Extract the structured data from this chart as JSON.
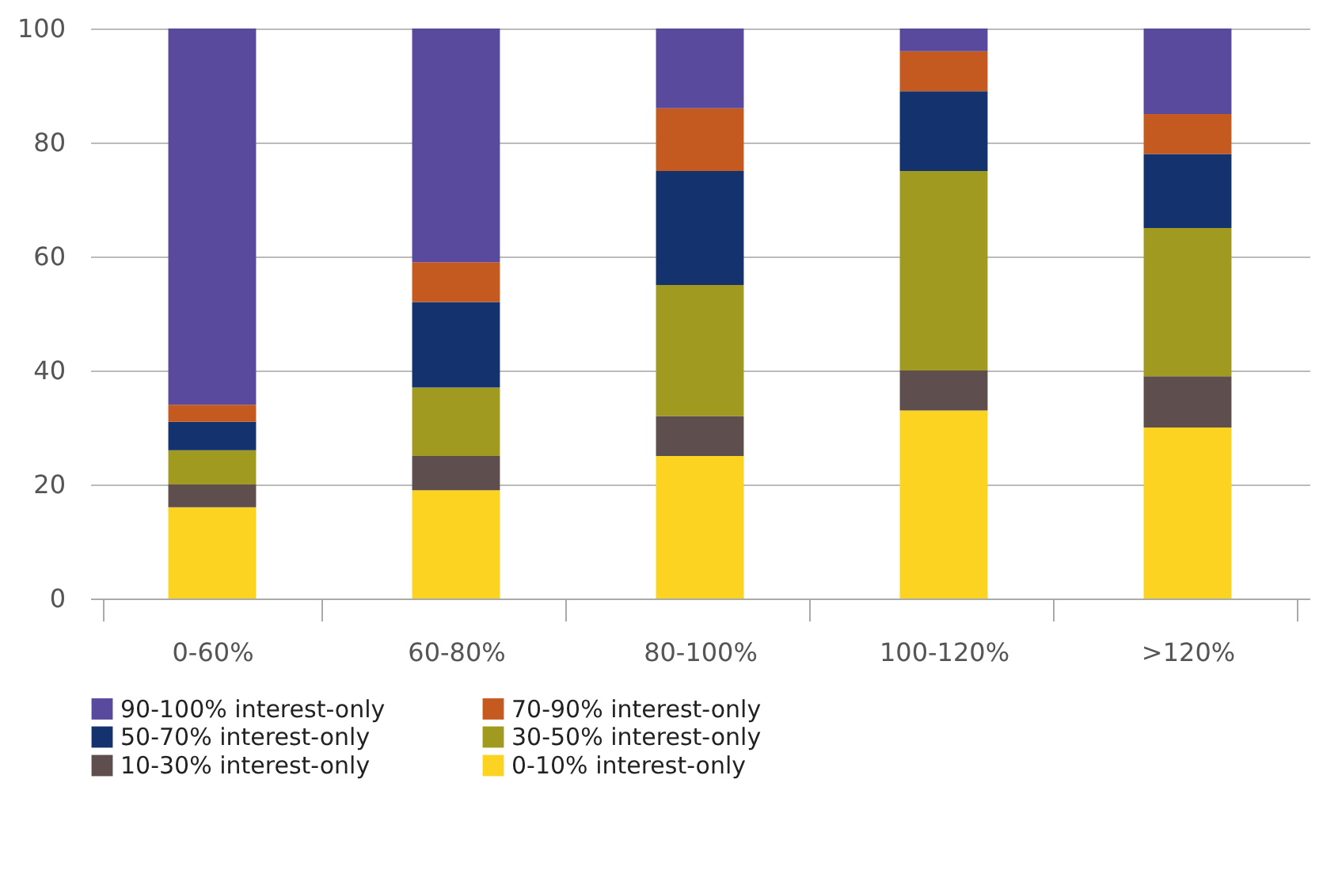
{
  "chart_data": {
    "type": "bar",
    "stacked": true,
    "categories": [
      "0-60%",
      "60-80%",
      "80-100%",
      "100-120%",
      ">120%"
    ],
    "series": [
      {
        "name": "0-10% interest-only",
        "color": "#fdd321",
        "values": [
          16,
          19,
          25,
          33,
          30
        ]
      },
      {
        "name": "10-30% interest-only",
        "color": "#5e4f4e",
        "values": [
          4,
          6,
          7,
          7,
          9
        ]
      },
      {
        "name": "30-50% interest-only",
        "color": "#a09a20",
        "values": [
          6,
          12,
          23,
          35,
          26
        ]
      },
      {
        "name": "50-70% interest-only",
        "color": "#14336e",
        "values": [
          5,
          15,
          20,
          14,
          13
        ]
      },
      {
        "name": "70-90% interest-only",
        "color": "#c55a20",
        "values": [
          3,
          7,
          11,
          7,
          7
        ]
      },
      {
        "name": "90-100% interest-only",
        "color": "#5a4a9e",
        "values": [
          66,
          41,
          14,
          4,
          15
        ]
      }
    ],
    "ylim": [
      0,
      100
    ],
    "yticks": [
      0,
      20,
      40,
      60,
      80,
      100
    ],
    "grid": "y",
    "legend": "bottom"
  }
}
